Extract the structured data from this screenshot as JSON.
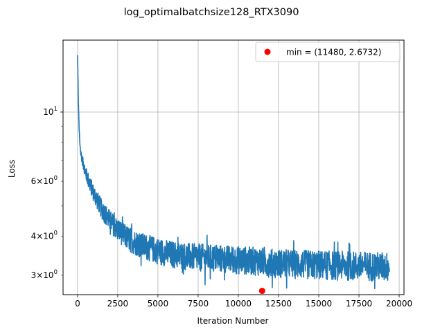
{
  "chart_data": {
    "type": "line",
    "title": "log_optimalbatchsize128_RTX3090",
    "xlabel": "Iteration Number",
    "ylabel": "Loss",
    "yscale": "log",
    "xlim": [
      -900,
      20300
    ],
    "ylim": [
      2.6,
      17.0
    ],
    "grid": true,
    "x_ticks": [
      {
        "value": 0,
        "label": "0"
      },
      {
        "value": 2500,
        "label": "2500"
      },
      {
        "value": 5000,
        "label": "5000"
      },
      {
        "value": 7500,
        "label": "7500"
      },
      {
        "value": 10000,
        "label": "10000"
      },
      {
        "value": 12500,
        "label": "12500"
      },
      {
        "value": 15000,
        "label": "15000"
      },
      {
        "value": 17500,
        "label": "17500"
      },
      {
        "value": 20000,
        "label": "20000"
      }
    ],
    "y_major_ticks": [
      {
        "value": 10,
        "base": "10",
        "exp": "1"
      }
    ],
    "y_minor_ticks": [
      {
        "value": 3,
        "coef": "3",
        "base": "10",
        "exp": "0"
      },
      {
        "value": 4,
        "coef": "4",
        "base": "10",
        "exp": "0"
      },
      {
        "value": 5,
        "coef": "",
        "base": "",
        "exp": ""
      },
      {
        "value": 6,
        "coef": "6",
        "base": "10",
        "exp": "0"
      },
      {
        "value": 7,
        "coef": "",
        "base": "",
        "exp": ""
      },
      {
        "value": 8,
        "coef": "",
        "base": "",
        "exp": ""
      },
      {
        "value": 9,
        "coef": "",
        "base": "",
        "exp": ""
      }
    ],
    "series": [
      {
        "color": "#1f77b4",
        "x": [
          0,
          50,
          100,
          150,
          200,
          300,
          500,
          700,
          1000,
          1500,
          2000,
          2500,
          3000,
          3500,
          4000,
          5000,
          6000,
          7000,
          8000,
          9000,
          10000,
          11000,
          12000,
          13000,
          14000,
          15000,
          16000,
          17000,
          18000,
          19000,
          19400
        ],
        "y": [
          15.2,
          11.0,
          8.8,
          7.8,
          7.4,
          7.0,
          6.4,
          6.0,
          5.5,
          4.9,
          4.5,
          4.2,
          4.0,
          3.85,
          3.75,
          3.6,
          3.5,
          3.45,
          3.42,
          3.4,
          3.37,
          3.35,
          3.3,
          3.28,
          3.26,
          3.25,
          3.24,
          3.23,
          3.22,
          3.21,
          3.2
        ],
        "spread": [
          0,
          0.3,
          0.3,
          0.3,
          0.4,
          0.5,
          0.6,
          0.7,
          0.7,
          0.7,
          0.7,
          0.7,
          0.7,
          0.7,
          0.7,
          0.7,
          0.7,
          0.7,
          0.7,
          0.7,
          0.7,
          0.7,
          0.7,
          0.7,
          0.7,
          0.7,
          0.7,
          0.7,
          0.7,
          0.7,
          0.7
        ]
      }
    ],
    "min_marker": {
      "x": 11480,
      "y": 2.6732,
      "color": "#ff0000"
    },
    "legend": {
      "position": "top-right",
      "label": "min = (11480, 2.6732)"
    }
  }
}
